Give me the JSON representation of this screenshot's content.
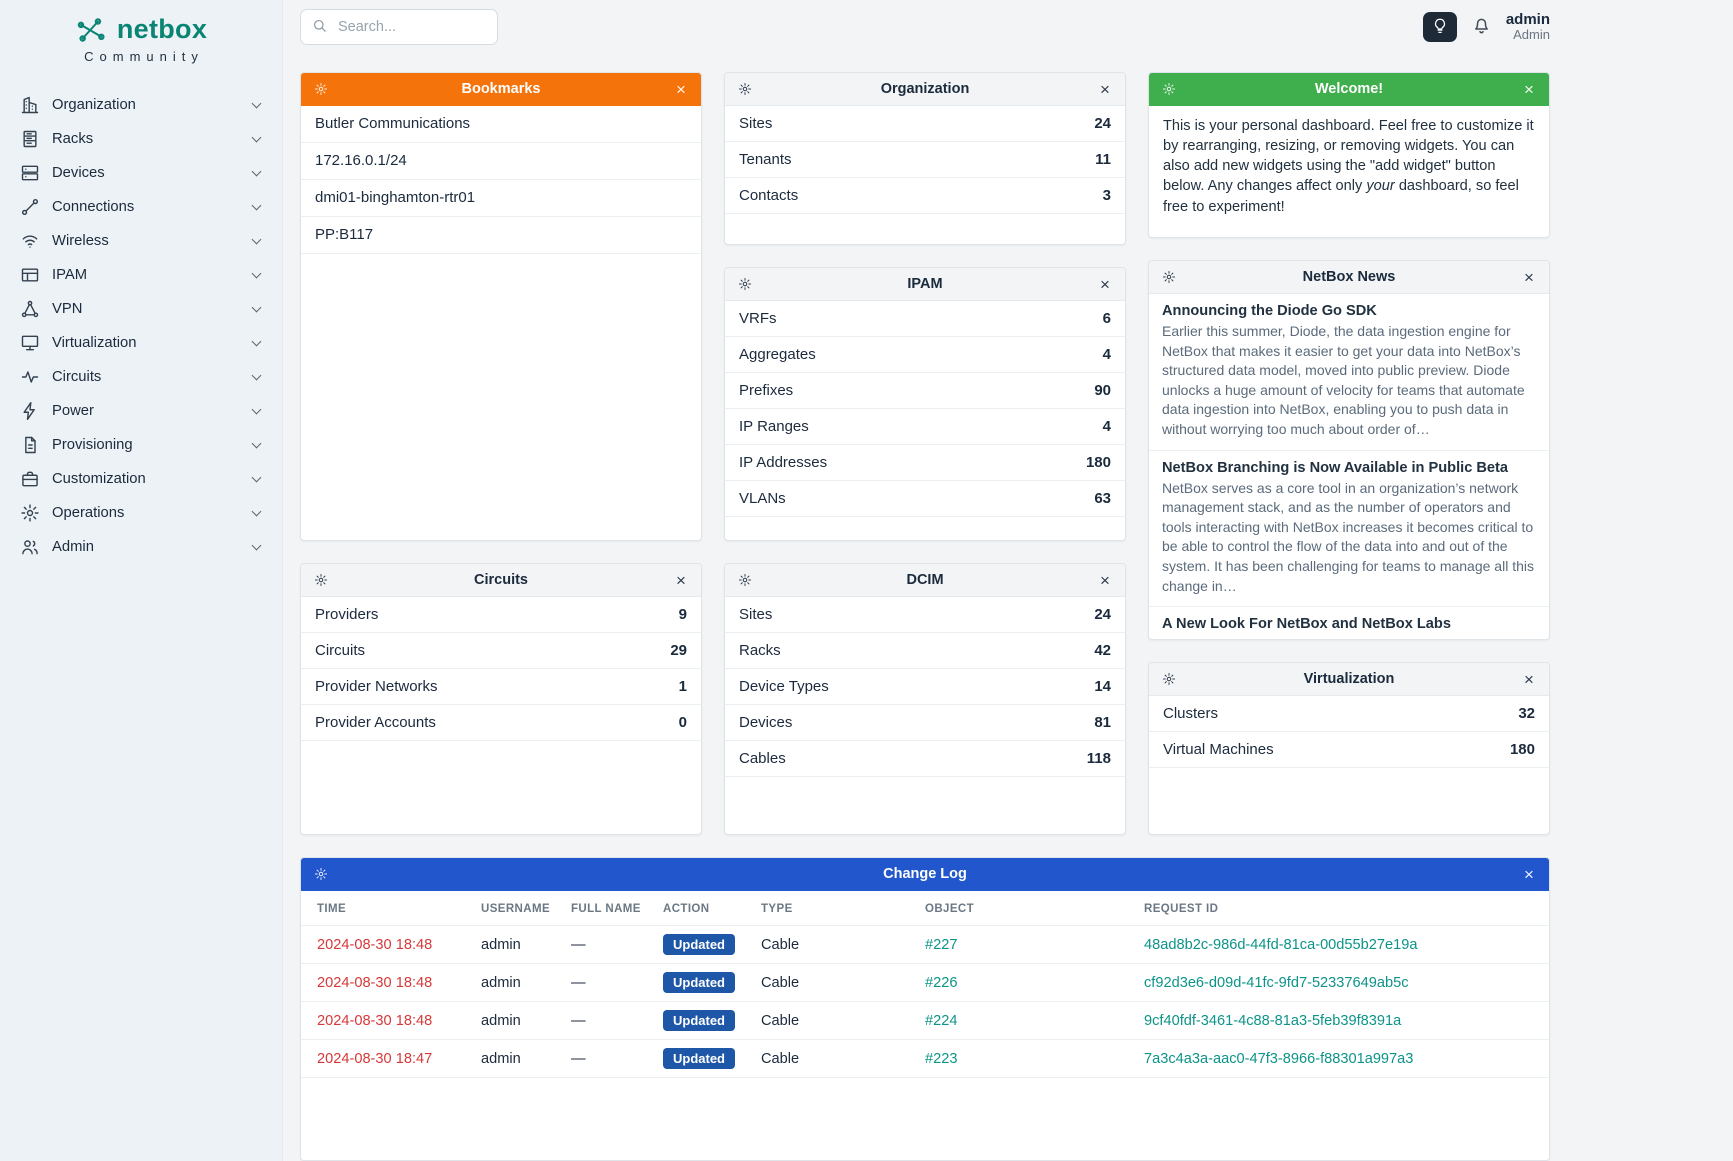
{
  "brand": {
    "name": "netbox",
    "subtitle": "Community"
  },
  "icons": {
    "close": "×"
  },
  "colors": {
    "widget_orange": "#f4730b",
    "widget_green": "#3fae4c",
    "widget_blue": "#2156cd",
    "badge_blue": "#1e56a8",
    "link_teal": "#0d9488",
    "link_red": "#d63939",
    "brand_teal": "#0a8573"
  },
  "topbar": {
    "search_placeholder": "Search...",
    "user_name": "admin",
    "user_role": "Admin"
  },
  "sidebar": {
    "items": [
      {
        "label": "Organization",
        "icon": "organization"
      },
      {
        "label": "Racks",
        "icon": "racks"
      },
      {
        "label": "Devices",
        "icon": "devices"
      },
      {
        "label": "Connections",
        "icon": "connections"
      },
      {
        "label": "Wireless",
        "icon": "wireless"
      },
      {
        "label": "IPAM",
        "icon": "ipam"
      },
      {
        "label": "VPN",
        "icon": "vpn"
      },
      {
        "label": "Virtualization",
        "icon": "virtualization"
      },
      {
        "label": "Circuits",
        "icon": "circuits"
      },
      {
        "label": "Power",
        "icon": "power"
      },
      {
        "label": "Provisioning",
        "icon": "provisioning"
      },
      {
        "label": "Customization",
        "icon": "customization"
      },
      {
        "label": "Operations",
        "icon": "operations"
      },
      {
        "label": "Admin",
        "icon": "admin"
      }
    ]
  },
  "widgets": {
    "bookmarks": {
      "title": "Bookmarks",
      "items": [
        "Butler Communications",
        "172.16.0.1/24",
        "dmi01-binghamton-rtr01",
        "PP:B117"
      ]
    },
    "organization": {
      "title": "Organization",
      "rows": [
        {
          "label": "Sites",
          "value": "24"
        },
        {
          "label": "Tenants",
          "value": "11"
        },
        {
          "label": "Contacts",
          "value": "3"
        }
      ]
    },
    "welcome": {
      "title": "Welcome!",
      "text_parts": [
        {
          "text": "This is your personal dashboard. Feel free to customize it by rearranging, resizing, or removing widgets. You can also add new widgets using the \"add widget\" button below. Any changes affect only ",
          "italic": false
        },
        {
          "text": "your",
          "italic": true
        },
        {
          "text": " dashboard, so feel free to experiment!",
          "italic": false
        }
      ]
    },
    "ipam": {
      "title": "IPAM",
      "rows": [
        {
          "label": "VRFs",
          "value": "6"
        },
        {
          "label": "Aggregates",
          "value": "4"
        },
        {
          "label": "Prefixes",
          "value": "90"
        },
        {
          "label": "IP Ranges",
          "value": "4"
        },
        {
          "label": "IP Addresses",
          "value": "180"
        },
        {
          "label": "VLANs",
          "value": "63"
        }
      ]
    },
    "news": {
      "title": "NetBox News",
      "stories": [
        {
          "headline": "Announcing the Diode Go SDK",
          "body": "Earlier this summer, Diode, the data ingestion engine for NetBox that makes it easier to get your data into NetBox’s structured data model, moved into public preview. Diode unlocks a huge amount of velocity for teams that automate data ingestion into NetBox, enabling you to push data in without worrying too much about order of…"
        },
        {
          "headline": "NetBox Branching is Now Available in Public Beta",
          "body": "NetBox serves as a core tool in an organization’s network management stack, and as the number of operators and tools interacting with NetBox increases it becomes critical to be able to control the flow of the data into and out of the system. It has been challenging for teams to manage all this change in…"
        },
        {
          "headline": "A New Look For NetBox and NetBox Labs",
          "body": ""
        }
      ]
    },
    "circuits": {
      "title": "Circuits",
      "rows": [
        {
          "label": "Providers",
          "value": "9"
        },
        {
          "label": "Circuits",
          "value": "29"
        },
        {
          "label": "Provider Networks",
          "value": "1"
        },
        {
          "label": "Provider Accounts",
          "value": "0"
        }
      ]
    },
    "dcim": {
      "title": "DCIM",
      "rows": [
        {
          "label": "Sites",
          "value": "24"
        },
        {
          "label": "Racks",
          "value": "42"
        },
        {
          "label": "Device Types",
          "value": "14"
        },
        {
          "label": "Devices",
          "value": "81"
        },
        {
          "label": "Cables",
          "value": "118"
        }
      ]
    },
    "virtualization": {
      "title": "Virtualization",
      "rows": [
        {
          "label": "Clusters",
          "value": "32"
        },
        {
          "label": "Virtual Machines",
          "value": "180"
        }
      ]
    },
    "changelog": {
      "title": "Change Log",
      "columns": [
        "TIME",
        "USERNAME",
        "FULL NAME",
        "ACTION",
        "TYPE",
        "OBJECT",
        "REQUEST ID"
      ],
      "rows": [
        {
          "time": "2024-08-30 18:48",
          "username": "admin",
          "full_name": "—",
          "action": "Updated",
          "type": "Cable",
          "object": "#227",
          "request_id": "48ad8b2c-986d-44fd-81ca-00d55b27e19a"
        },
        {
          "time": "2024-08-30 18:48",
          "username": "admin",
          "full_name": "—",
          "action": "Updated",
          "type": "Cable",
          "object": "#226",
          "request_id": "cf92d3e6-d09d-41fc-9fd7-52337649ab5c"
        },
        {
          "time": "2024-08-30 18:48",
          "username": "admin",
          "full_name": "—",
          "action": "Updated",
          "type": "Cable",
          "object": "#224",
          "request_id": "9cf40fdf-3461-4c88-81a3-5feb39f8391a"
        },
        {
          "time": "2024-08-30 18:47",
          "username": "admin",
          "full_name": "—",
          "action": "Updated",
          "type": "Cable",
          "object": "#223",
          "request_id": "7a3c4a3a-aac0-47f3-8966-f88301a997a3"
        }
      ]
    }
  }
}
